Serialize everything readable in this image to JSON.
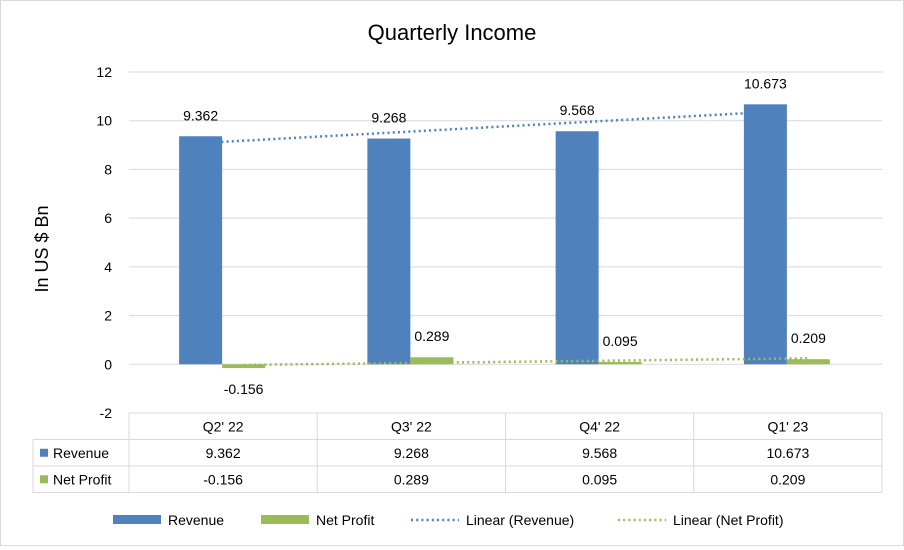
{
  "chart_data": {
    "type": "bar",
    "title": "Quarterly Income",
    "ylabel": "In US $ Bn",
    "xlabel": "",
    "ylim": [
      -2,
      12
    ],
    "yticks": [
      -2,
      0,
      2,
      4,
      6,
      8,
      10,
      12
    ],
    "categories": [
      "Q2' 22",
      "Q3' 22",
      "Q4' 22",
      "Q1' 23"
    ],
    "series": [
      {
        "name": "Revenue",
        "color": "#4f81bd",
        "values": [
          9.362,
          9.268,
          9.568,
          10.673
        ],
        "labels": [
          "9.362",
          "9.268",
          "9.568",
          "10.673"
        ]
      },
      {
        "name": "Net Profit",
        "color": "#9bbb59",
        "values": [
          -0.156,
          0.289,
          0.095,
          0.209
        ],
        "labels": [
          "-0.156",
          "0.289",
          "0.095",
          "0.209"
        ]
      }
    ],
    "trendlines": [
      {
        "name": "Linear (Revenue)",
        "series": "Revenue",
        "type": "linear",
        "color": "#4f81bd",
        "style": "dotted"
      },
      {
        "name": "Linear (Net Profit)",
        "series": "Net Profit",
        "type": "linear",
        "color": "#9bbb59",
        "style": "dotted"
      }
    ],
    "grid": true,
    "legend_position": "bottom",
    "data_table": true
  }
}
